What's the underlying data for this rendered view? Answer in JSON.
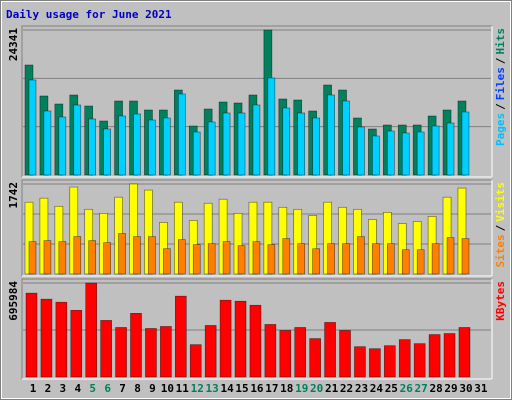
{
  "title": "Daily usage for June 2021",
  "chart_data": [
    {
      "type": "bar",
      "ylim": [
        0,
        24341
      ],
      "yticks": [
        24341
      ],
      "grid_lines": [
        8114,
        16227
      ],
      "legend": [
        {
          "label": "Pages",
          "color": "#00c0ff"
        },
        {
          "label": "Files",
          "color": "#0040ff"
        },
        {
          "label": "Hits",
          "color": "#008060"
        }
      ],
      "separator": "/",
      "series": [
        {
          "color": "#00805c",
          "values": [
            18466,
            13264,
            11920,
            13431,
            11584,
            9066,
            12423,
            12423,
            10912,
            10912,
            14270,
            8226,
            11080,
            12255,
            12087,
            13431,
            24341,
            12759,
            12590,
            10744,
            15109,
            14270,
            9569,
            7722,
            8394,
            8394,
            8394,
            9905,
            10912,
            12423,
            null
          ]
        },
        {
          "color": "#00d0ff",
          "values": [
            15950,
            10745,
            9738,
            11752,
            9402,
            7723,
            9906,
            10241,
            9234,
            9570,
            13599,
            7219,
            8898,
            10409,
            10409,
            11752,
            16285,
            11248,
            10409,
            9570,
            13431,
            12423,
            8058,
            6547,
            7387,
            7051,
            7219,
            8226,
            8730,
            10577,
            null
          ]
        }
      ]
    },
    {
      "type": "bar",
      "ylim": [
        0,
        1742
      ],
      "yticks": [
        1742
      ],
      "grid_lines": [
        581,
        1161
      ],
      "legend": [
        {
          "label": "Sites",
          "color": "#ff8000"
        },
        {
          "label": "Visits",
          "color": "#ffff00"
        }
      ],
      "separator": "/",
      "series": [
        {
          "color": "#ffff00",
          "values": [
            1390,
            1468,
            1311,
            1683,
            1253,
            1174,
            1487,
            1742,
            1624,
            998,
            1390,
            1037,
            1370,
            1448,
            1174,
            1390,
            1390,
            1292,
            1253,
            1135,
            1390,
            1292,
            1253,
            1057,
            1194,
            979,
            1018,
            1115,
            1487,
            1663,
            null
          ]
        },
        {
          "color": "#ff8000",
          "values": [
            626,
            646,
            626,
            724,
            646,
            607,
            783,
            724,
            724,
            489,
            665,
            568,
            587,
            626,
            548,
            626,
            568,
            685,
            587,
            489,
            587,
            587,
            724,
            587,
            587,
            470,
            470,
            587,
            705,
            685,
            null
          ]
        }
      ]
    },
    {
      "type": "bar",
      "ylim": [
        0,
        695984
      ],
      "yticks": [
        695984
      ],
      "grid_lines": [
        347992
      ],
      "legend": [
        {
          "label": "KBytes",
          "color": "#ff0000"
        }
      ],
      "separator": "/",
      "categories": [
        "1",
        "2",
        "3",
        "4",
        "5",
        "6",
        "7",
        "8",
        "9",
        "10",
        "11",
        "12",
        "13",
        "14",
        "15",
        "16",
        "17",
        "18",
        "19",
        "20",
        "21",
        "22",
        "23",
        "24",
        "25",
        "26",
        "27",
        "28",
        "29",
        "30",
        "31"
      ],
      "category_colors": [
        "#000000",
        "#000000",
        "#000000",
        "#000000",
        "#00805c",
        "#00805c",
        "#000000",
        "#000000",
        "#000000",
        "#000000",
        "#000000",
        "#00805c",
        "#00805c",
        "#000000",
        "#000000",
        "#000000",
        "#000000",
        "#000000",
        "#00805c",
        "#00805c",
        "#000000",
        "#000000",
        "#000000",
        "#000000",
        "#000000",
        "#00805c",
        "#00805c",
        "#000000",
        "#000000",
        "#000000",
        "#000000"
      ],
      "series": [
        {
          "color": "#ff0000",
          "values": [
            621172,
            576268,
            553816,
            493944,
            695984,
            419104,
            366716,
            471492,
            359232,
            374200,
            598720,
            239488,
            381684,
            568784,
            561300,
            531364,
            389168,
            344264,
            366716,
            284392,
            404136,
            344264,
            224520,
            209552,
            232004,
            276908,
            246972,
            314328,
            321812,
            366716,
            null
          ]
        }
      ]
    }
  ]
}
